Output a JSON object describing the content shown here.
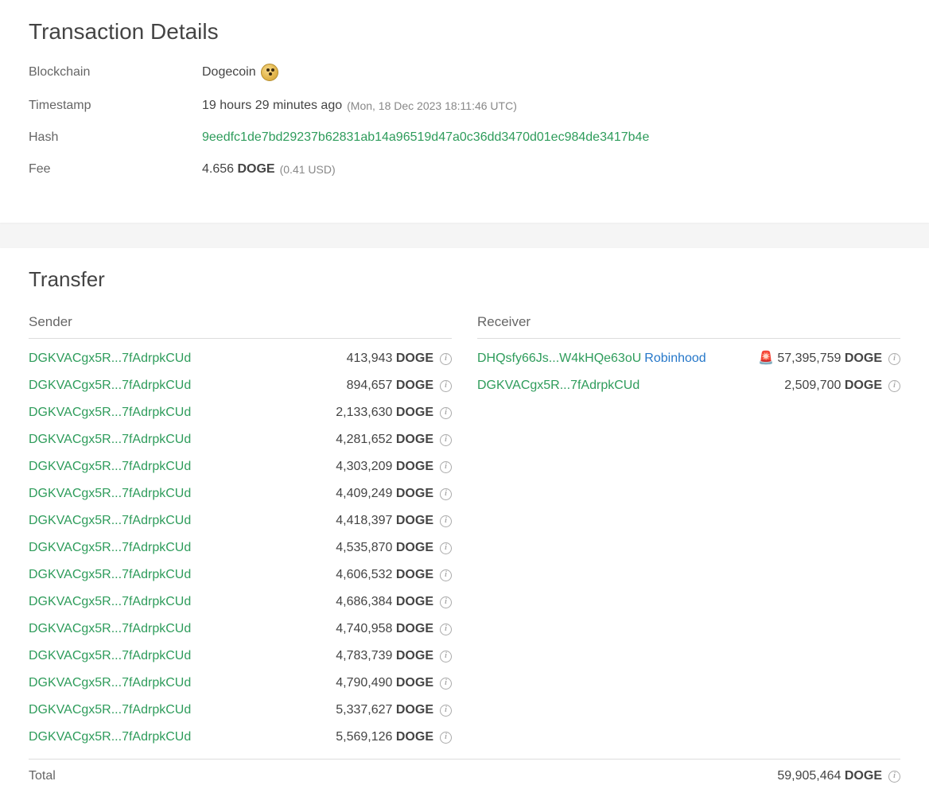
{
  "details": {
    "title": "Transaction Details",
    "rows": {
      "blockchain": {
        "label": "Blockchain",
        "value": "Dogecoin"
      },
      "timestamp": {
        "label": "Timestamp",
        "value": "19 hours 29 minutes ago",
        "sub": "(Mon, 18 Dec 2023 18:11:46 UTC)"
      },
      "hash": {
        "label": "Hash",
        "value": "9eedfc1de7bd29237b62831ab14a96519d47a0c36dd3470d01ec984de3417b4e"
      },
      "fee": {
        "label": "Fee",
        "amount": "4.656 ",
        "unit": "DOGE",
        "sub": " (0.41 USD)"
      }
    }
  },
  "transfer": {
    "title": "Transfer",
    "sender_header": "Sender",
    "receiver_header": "Receiver",
    "senders": [
      {
        "addr": "DGKVACgx5R...7fAdrpkCUd",
        "amount": "413,943",
        "unit": "DOGE"
      },
      {
        "addr": "DGKVACgx5R...7fAdrpkCUd",
        "amount": "894,657",
        "unit": "DOGE"
      },
      {
        "addr": "DGKVACgx5R...7fAdrpkCUd",
        "amount": "2,133,630",
        "unit": "DOGE"
      },
      {
        "addr": "DGKVACgx5R...7fAdrpkCUd",
        "amount": "4,281,652",
        "unit": "DOGE"
      },
      {
        "addr": "DGKVACgx5R...7fAdrpkCUd",
        "amount": "4,303,209",
        "unit": "DOGE"
      },
      {
        "addr": "DGKVACgx5R...7fAdrpkCUd",
        "amount": "4,409,249",
        "unit": "DOGE"
      },
      {
        "addr": "DGKVACgx5R...7fAdrpkCUd",
        "amount": "4,418,397",
        "unit": "DOGE"
      },
      {
        "addr": "DGKVACgx5R...7fAdrpkCUd",
        "amount": "4,535,870",
        "unit": "DOGE"
      },
      {
        "addr": "DGKVACgx5R...7fAdrpkCUd",
        "amount": "4,606,532",
        "unit": "DOGE"
      },
      {
        "addr": "DGKVACgx5R...7fAdrpkCUd",
        "amount": "4,686,384",
        "unit": "DOGE"
      },
      {
        "addr": "DGKVACgx5R...7fAdrpkCUd",
        "amount": "4,740,958",
        "unit": "DOGE"
      },
      {
        "addr": "DGKVACgx5R...7fAdrpkCUd",
        "amount": "4,783,739",
        "unit": "DOGE"
      },
      {
        "addr": "DGKVACgx5R...7fAdrpkCUd",
        "amount": "4,790,490",
        "unit": "DOGE"
      },
      {
        "addr": "DGKVACgx5R...7fAdrpkCUd",
        "amount": "5,337,627",
        "unit": "DOGE"
      },
      {
        "addr": "DGKVACgx5R...7fAdrpkCUd",
        "amount": "5,569,126",
        "unit": "DOGE"
      }
    ],
    "receivers": [
      {
        "addr": "DHQsfy66Js...W4kHQe63oU",
        "owner": "Robinhood",
        "alert": true,
        "amount": "57,395,759",
        "unit": "DOGE"
      },
      {
        "addr": "DGKVACgx5R...7fAdrpkCUd",
        "amount": "2,509,700",
        "unit": "DOGE"
      }
    ],
    "total": {
      "label": "Total",
      "amount": "59,905,464",
      "unit": "DOGE"
    }
  },
  "colors": {
    "link_green": "#2e9c5b",
    "link_blue": "#2577c9",
    "text": "#444",
    "muted": "#666",
    "sub": "#888",
    "border": "#ddd",
    "bg": "#f5f5f5",
    "card_bg": "#ffffff"
  }
}
